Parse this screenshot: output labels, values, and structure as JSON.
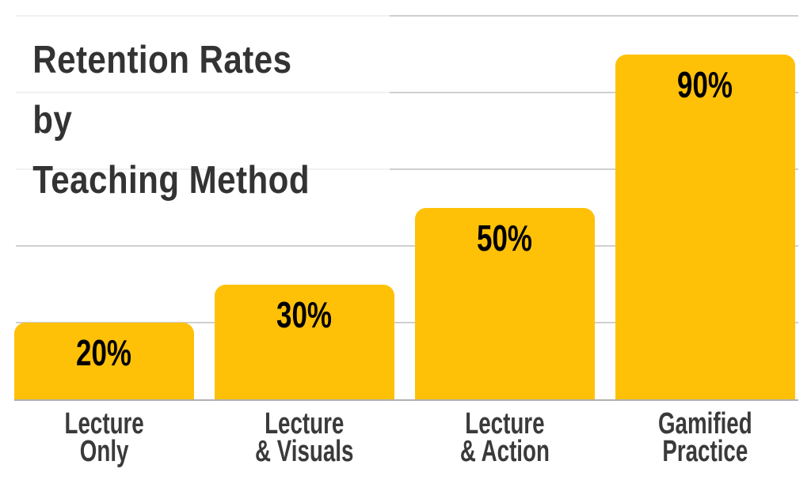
{
  "chart_data": {
    "type": "bar",
    "title": "Retention Rates by\nTeaching Method",
    "categories": [
      "Lecture\nOnly",
      "Lecture\n& Visuals",
      "Lecture\n& Action",
      "Gamified\nPractice"
    ],
    "values": [
      20,
      30,
      50,
      90
    ],
    "value_labels": [
      "20%",
      "30%",
      "50%",
      "90%"
    ],
    "xlabel": "",
    "ylabel": "",
    "ylim": [
      0,
      100
    ],
    "gridline_step_pct": 20,
    "grid": true,
    "legend_position": "none",
    "axis_tick_labels_visible": false,
    "colors": {
      "bar": "#FFC107",
      "value_text": "#000000",
      "title_text": "#333333",
      "category_text": "#3a3a3a",
      "gridline": "#cfcfcf",
      "baseline": "#b0b0b0",
      "title_background": "rgba(255,255,255,0.7)"
    }
  }
}
